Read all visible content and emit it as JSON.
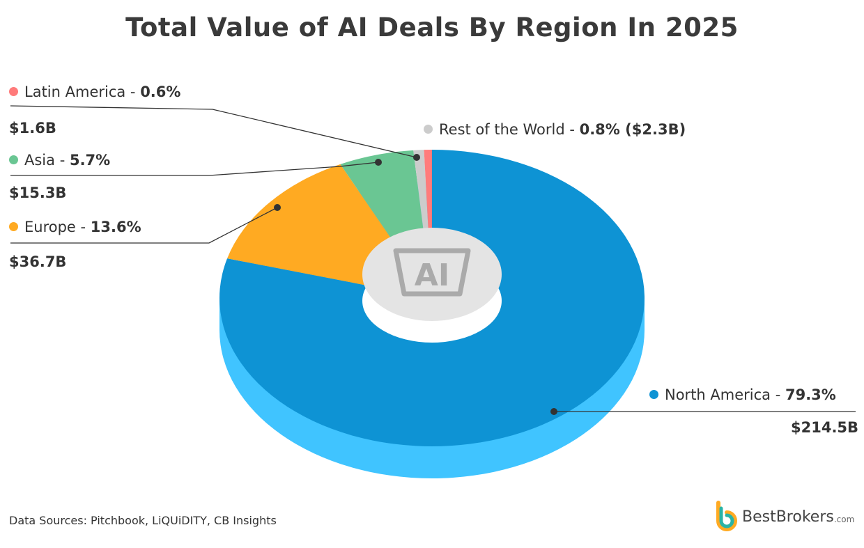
{
  "chart_data": {
    "type": "pie",
    "title": "Total Value of AI Deals By Region In 2025",
    "unit": "USD",
    "slices": [
      {
        "name": "North America",
        "percent": 79.3,
        "value_label": "$214.5B",
        "color": "#0E93D4",
        "side_color": "#40C4FF"
      },
      {
        "name": "Europe",
        "percent": 13.6,
        "value_label": "$36.7B",
        "color": "#FFAA22"
      },
      {
        "name": "Asia",
        "percent": 5.7,
        "value_label": "$15.3B",
        "color": "#6AC693"
      },
      {
        "name": "Rest of the World",
        "percent": 0.8,
        "value_label": "($2.3B)",
        "color": "#CCCCCC"
      },
      {
        "name": "Latin America",
        "percent": 0.6,
        "value_label": "$1.6B",
        "color": "#FF7B7B"
      }
    ],
    "center_icon": "AI"
  },
  "footer": {
    "source": "Data Sources: Pitchbook, LiQUiDITY, CB Insights",
    "brand": "BestBrokers",
    "brand_suffix": ".com"
  }
}
